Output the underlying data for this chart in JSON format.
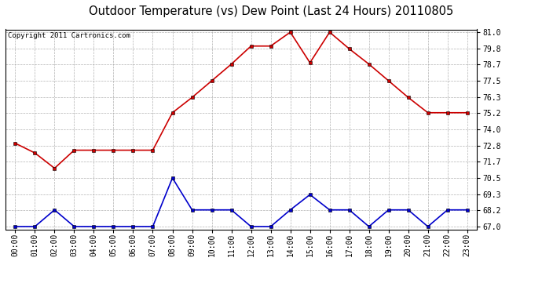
{
  "title": "Outdoor Temperature (vs) Dew Point (Last 24 Hours) 20110805",
  "copyright": "Copyright 2011 Cartronics.com",
  "hours": [
    "00:00",
    "01:00",
    "02:00",
    "03:00",
    "04:00",
    "05:00",
    "06:00",
    "07:00",
    "08:00",
    "09:00",
    "10:00",
    "11:00",
    "12:00",
    "13:00",
    "14:00",
    "15:00",
    "16:00",
    "17:00",
    "18:00",
    "19:00",
    "20:00",
    "21:00",
    "22:00",
    "23:00"
  ],
  "temp": [
    73.0,
    72.3,
    71.2,
    72.5,
    72.5,
    72.5,
    72.5,
    72.5,
    75.2,
    76.3,
    77.5,
    78.7,
    80.0,
    80.0,
    81.0,
    78.8,
    81.0,
    79.8,
    78.7,
    77.5,
    76.3,
    75.2,
    75.2,
    75.2
  ],
  "dew": [
    67.0,
    67.0,
    68.2,
    67.0,
    67.0,
    67.0,
    67.0,
    67.0,
    70.5,
    68.2,
    68.2,
    68.2,
    67.0,
    67.0,
    68.2,
    69.3,
    68.2,
    68.2,
    67.0,
    68.2,
    68.2,
    67.0,
    68.2,
    68.2
  ],
  "temp_color": "#cc0000",
  "dew_color": "#0000cc",
  "bg_color": "#ffffff",
  "plot_bg_color": "#ffffff",
  "grid_color": "#aaaaaa",
  "ymin": 67.0,
  "ymax": 81.0,
  "yticks": [
    67.0,
    68.2,
    69.3,
    70.5,
    71.7,
    72.8,
    74.0,
    75.2,
    76.3,
    77.5,
    78.7,
    79.8,
    81.0
  ],
  "title_fontsize": 10.5,
  "copyright_fontsize": 6.5,
  "tick_fontsize": 7,
  "marker": "s",
  "marker_size": 2.5,
  "line_width": 1.2
}
